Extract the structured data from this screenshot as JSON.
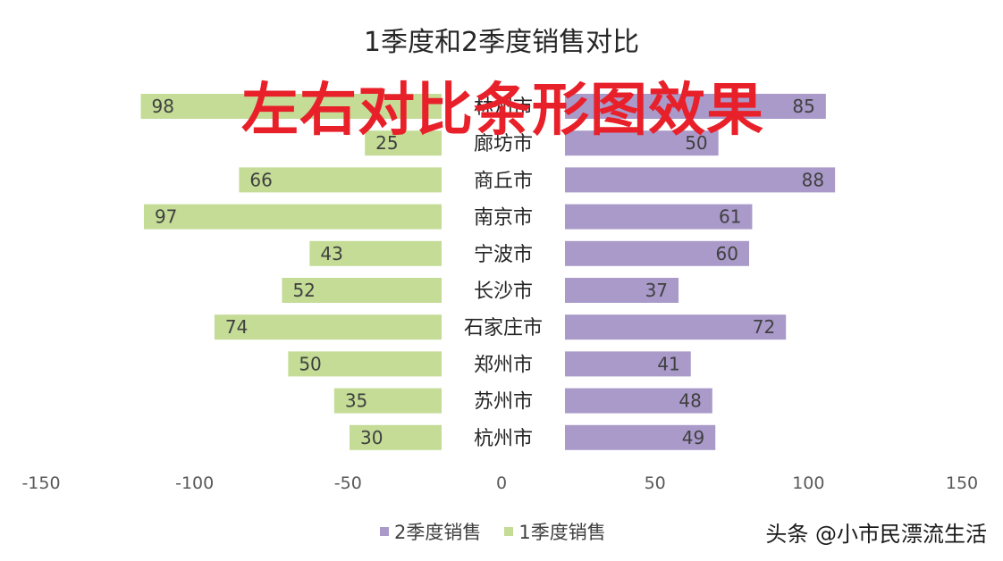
{
  "chart_data": {
    "type": "bar",
    "orientation": "horizontal",
    "layout": "butterfly",
    "title": "1季度和2季度销售对比",
    "categories": [
      "林州市",
      "廊坊市",
      "商丘市",
      "南京市",
      "宁波市",
      "长沙市",
      "石家庄市",
      "郑州市",
      "苏州市",
      "杭州市"
    ],
    "series": [
      {
        "name": "2季度销售",
        "values": [
          85,
          50,
          88,
          61,
          60,
          37,
          72,
          41,
          48,
          49
        ],
        "color": "#a99ac9"
      },
      {
        "name": "1季度销售",
        "values": [
          98,
          25,
          66,
          97,
          43,
          52,
          74,
          50,
          35,
          30
        ],
        "color": "#c4dc96"
      }
    ],
    "xaxis_ticks": [
      "-150",
      "-100",
      "-50",
      "0",
      "50",
      "100",
      "150"
    ],
    "xlim": [
      -150,
      150
    ],
    "legend_position": "bottom",
    "grid": false
  },
  "overlay_text": "左右对比条形图效果",
  "watermark": "头条 @小市民漂流生活"
}
